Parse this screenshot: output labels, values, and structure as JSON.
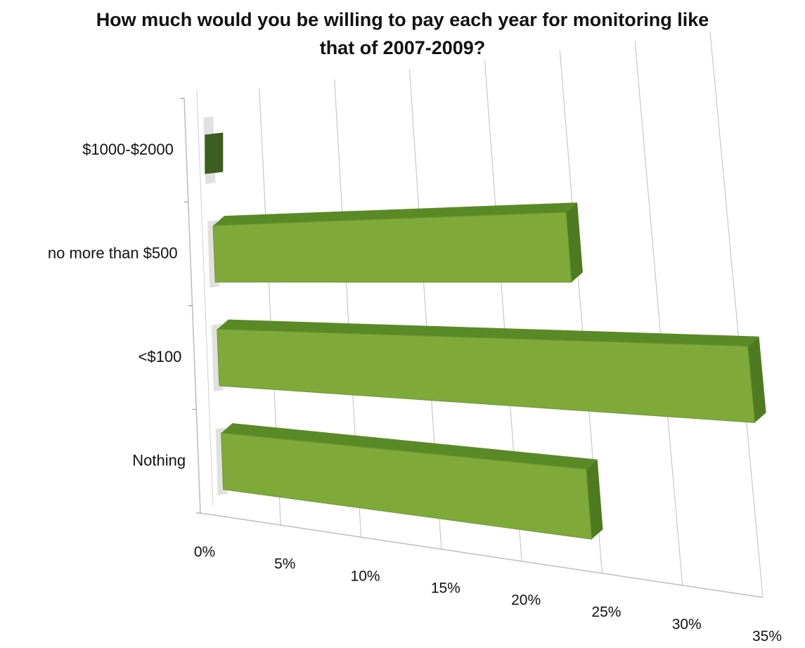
{
  "chart_data": {
    "type": "bar",
    "orientation": "horizontal",
    "style": "3d",
    "title_lines": [
      "How much would you be willing to pay each year for monitoring like",
      "that of 2007-2009?"
    ],
    "categories": [
      "$1000-$2000",
      "no more than $500",
      "<$100",
      "Nothing"
    ],
    "values": [
      1,
      23,
      34,
      23
    ],
    "xlim": [
      0,
      35
    ],
    "x_ticks": [
      "0%",
      "5%",
      "10%",
      "15%",
      "20%",
      "25%",
      "30%",
      "35%"
    ],
    "xlabel": "",
    "ylabel": "",
    "grid": true,
    "legend": "none",
    "colors": {
      "bar_front": "#7faa3a",
      "bar_top": "#5a8a26",
      "bar_side": "#4e7a20",
      "highlight_bar": "#3c5e1e",
      "gridline": "#c8c8c8"
    }
  }
}
